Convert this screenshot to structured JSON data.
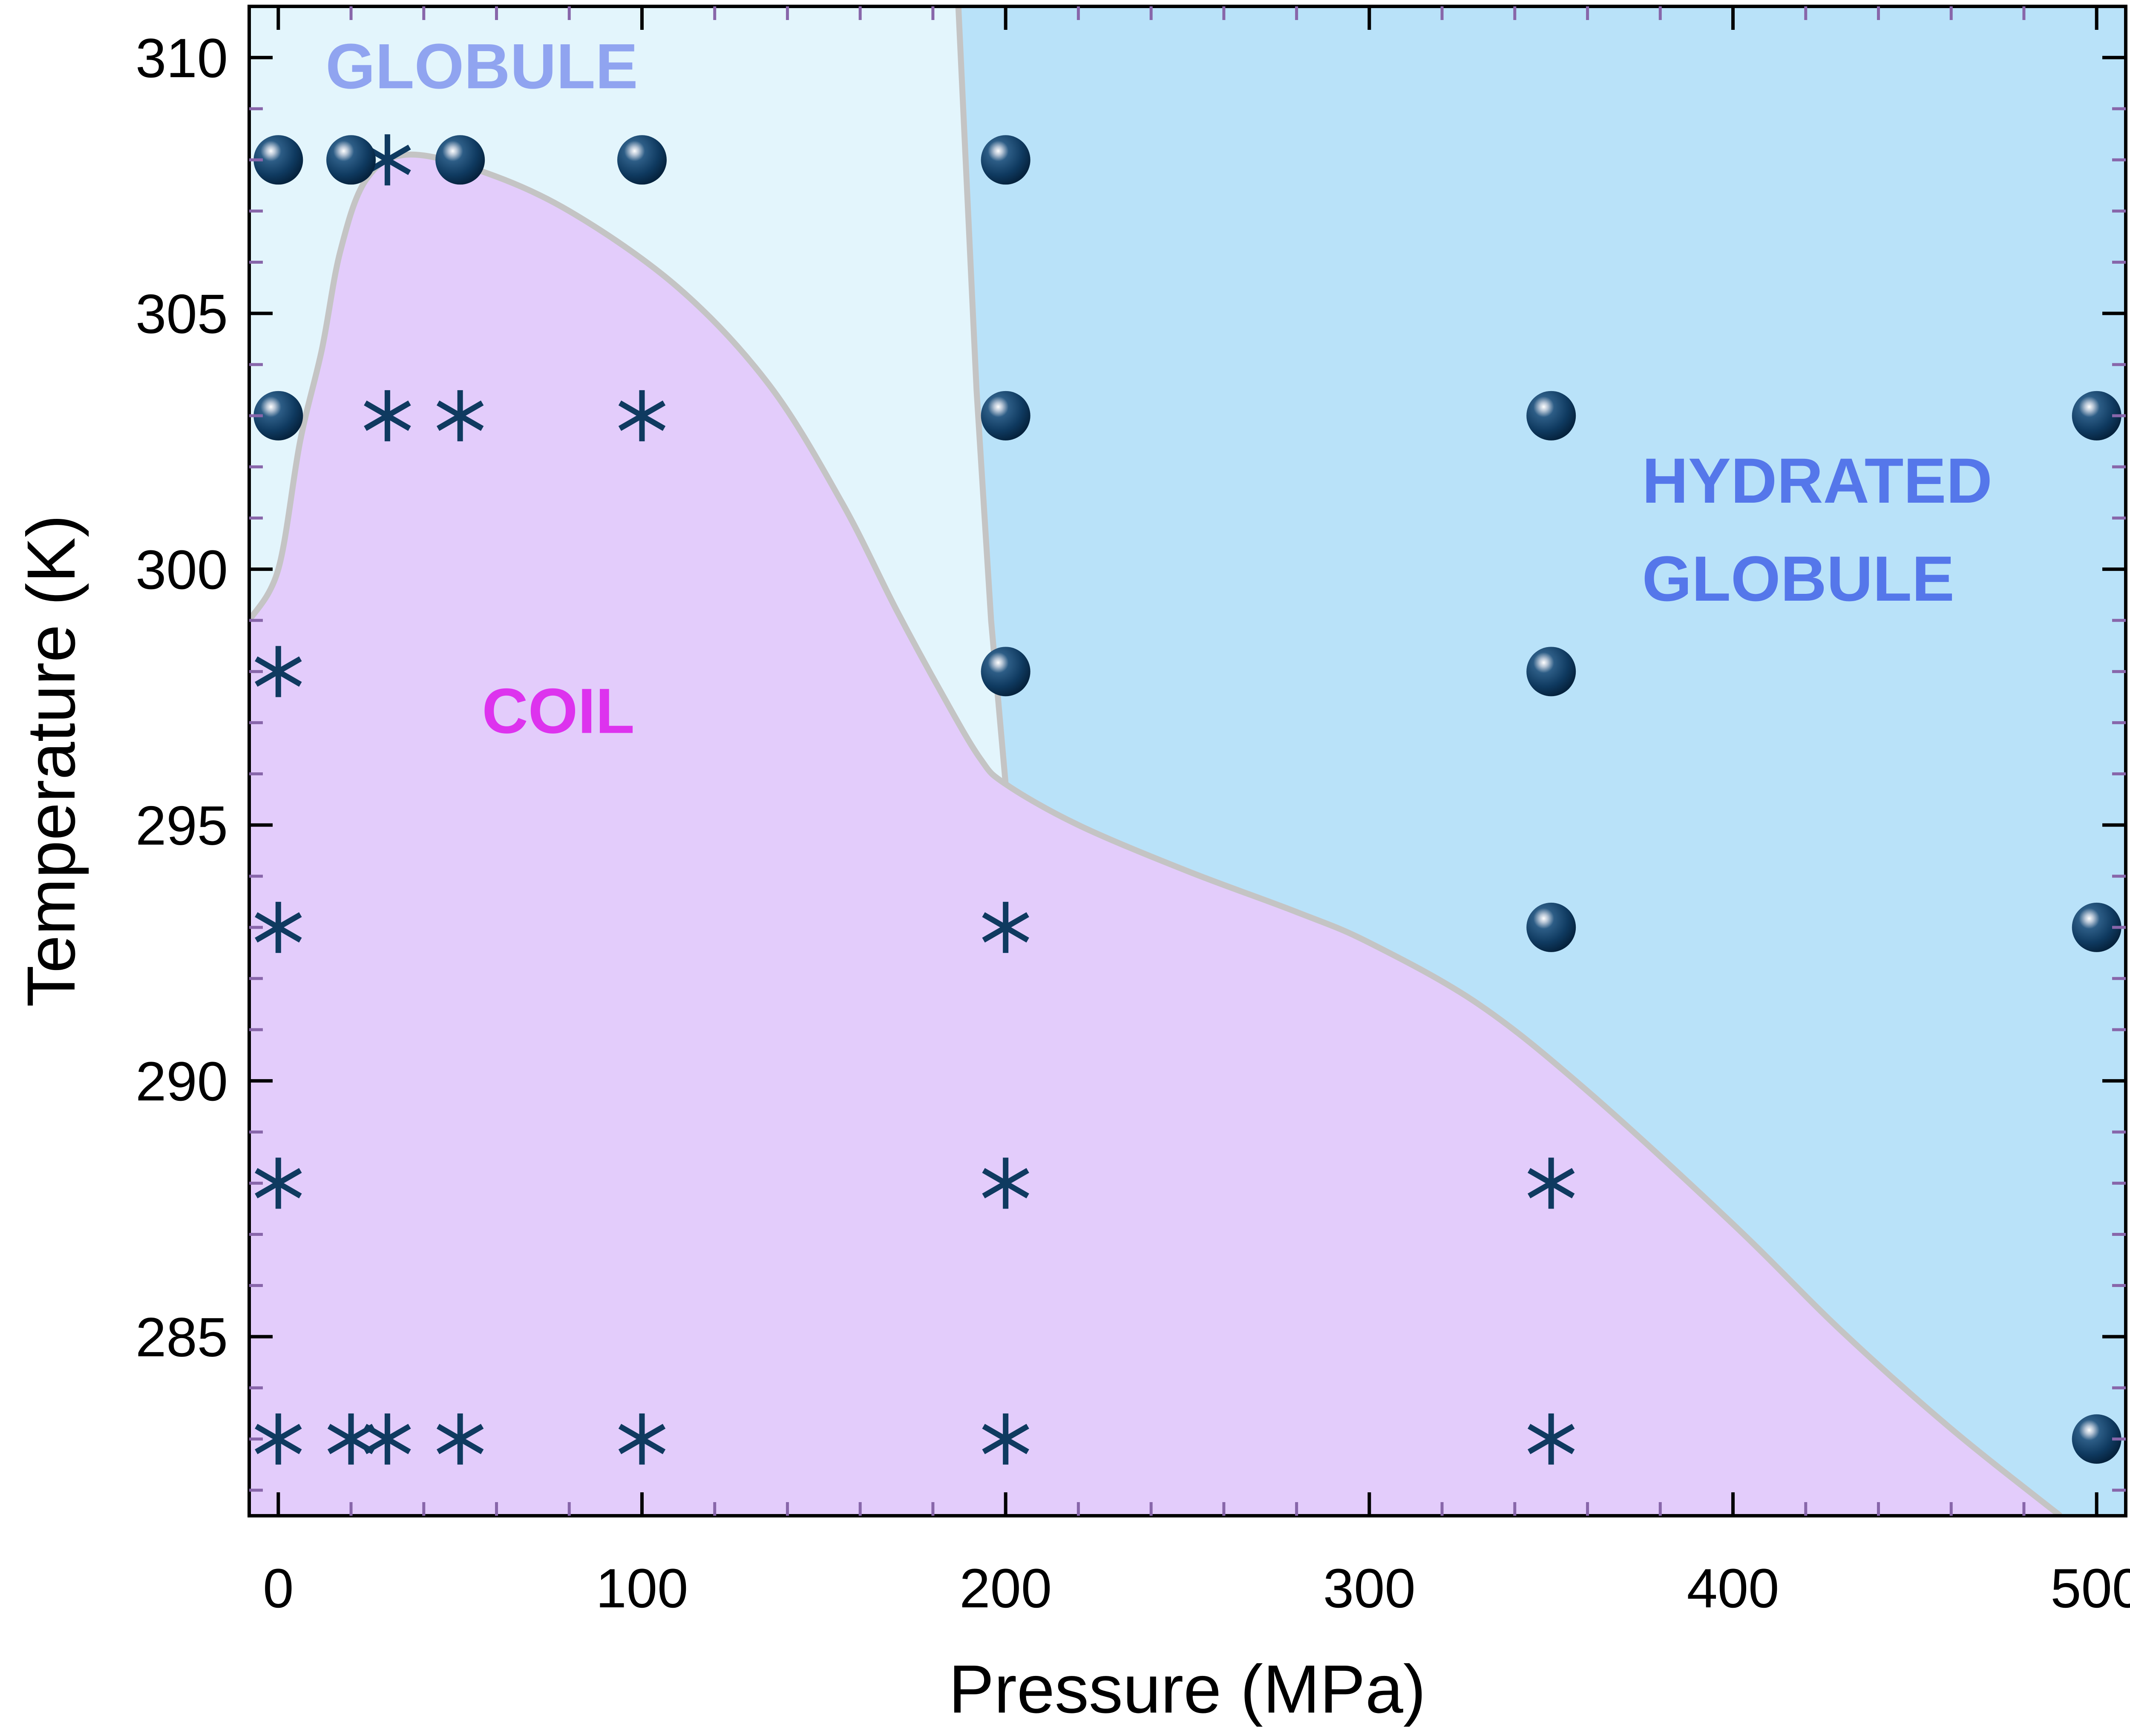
{
  "chart_data": {
    "type": "scatter",
    "title": "",
    "xlabel": "Pressure (MPa)",
    "ylabel": "Temperature (K)",
    "xlim": [
      -8,
      508
    ],
    "ylim": [
      281.5,
      311
    ],
    "x_ticks": [
      0,
      100,
      200,
      300,
      400,
      500
    ],
    "x_tick_labels": [
      "0",
      "100",
      "200",
      "300",
      "400",
      "500"
    ],
    "y_ticks": [
      285,
      290,
      295,
      300,
      305,
      310
    ],
    "y_tick_labels": [
      "285",
      "290",
      "295",
      "300",
      "305",
      "310"
    ],
    "grid": false,
    "legend": "none",
    "regions": [
      {
        "label": "GLOBULE",
        "color": "#e3f5fc",
        "label_color": "#90a4f0",
        "label_at": [
          13,
          309.4
        ]
      },
      {
        "label": "HYDRATED\nGLOBULE",
        "color": "#b9e2f9",
        "label_color": "#5577ea",
        "label_at": [
          375,
          301.3
        ]
      },
      {
        "label": "COIL",
        "color": "#e3ccfb",
        "label_color": "#dd33ee",
        "label_at": [
          56,
          296.8
        ]
      }
    ],
    "boundaries": {
      "coil_upper": [
        [
          -8,
          299
        ],
        [
          0,
          300
        ],
        [
          6,
          302.5
        ],
        [
          12,
          304.3
        ],
        [
          17,
          306.2
        ],
        [
          24,
          307.6
        ],
        [
          35,
          308.1
        ],
        [
          55,
          307.8
        ],
        [
          80,
          307
        ],
        [
          110,
          305.5
        ],
        [
          135,
          303.6
        ],
        [
          155,
          301.3
        ],
        [
          170,
          299.2
        ],
        [
          183,
          297.5
        ],
        [
          193,
          296.3
        ],
        [
          200,
          295.8
        ],
        [
          220,
          295
        ],
        [
          250,
          294.1
        ],
        [
          280,
          293.3
        ],
        [
          300,
          292.7
        ],
        [
          330,
          291.5
        ],
        [
          360,
          289.8
        ],
        [
          400,
          287.2
        ],
        [
          430,
          285.1
        ],
        [
          460,
          283.2
        ],
        [
          490,
          281.5
        ]
      ],
      "globule_hydrated": [
        [
          187,
          311
        ],
        [
          192,
          303.5
        ],
        [
          196,
          299
        ],
        [
          200,
          295.8
        ]
      ]
    },
    "series": [
      {
        "name": "",
        "marker": "asterisk",
        "color": "#0f3a60",
        "points": [
          [
            30,
            308
          ],
          [
            0,
            298
          ],
          [
            0,
            293
          ],
          [
            0,
            288
          ],
          [
            0,
            283
          ],
          [
            30,
            303
          ],
          [
            50,
            303
          ],
          [
            100,
            303
          ],
          [
            20,
            283
          ],
          [
            30,
            283
          ],
          [
            50,
            283
          ],
          [
            100,
            283
          ],
          [
            200,
            293
          ],
          [
            200,
            288
          ],
          [
            200,
            283
          ],
          [
            350,
            288
          ],
          [
            350,
            283
          ]
        ]
      },
      {
        "name": "",
        "marker": "sphere",
        "color": "#0f3a60",
        "points": [
          [
            0,
            308
          ],
          [
            20,
            308
          ],
          [
            50,
            308
          ],
          [
            100,
            308
          ],
          [
            200,
            308
          ],
          [
            0,
            303
          ],
          [
            200,
            303
          ],
          [
            350,
            303
          ],
          [
            500,
            303
          ],
          [
            200,
            298
          ],
          [
            350,
            298
          ],
          [
            350,
            293
          ],
          [
            500,
            293
          ],
          [
            500,
            283
          ]
        ]
      }
    ],
    "colors": {
      "boundary": "#c4c4c4",
      "marker": "#0f3a60",
      "frame": "#000000",
      "minor_tick": "#8866aa"
    }
  }
}
